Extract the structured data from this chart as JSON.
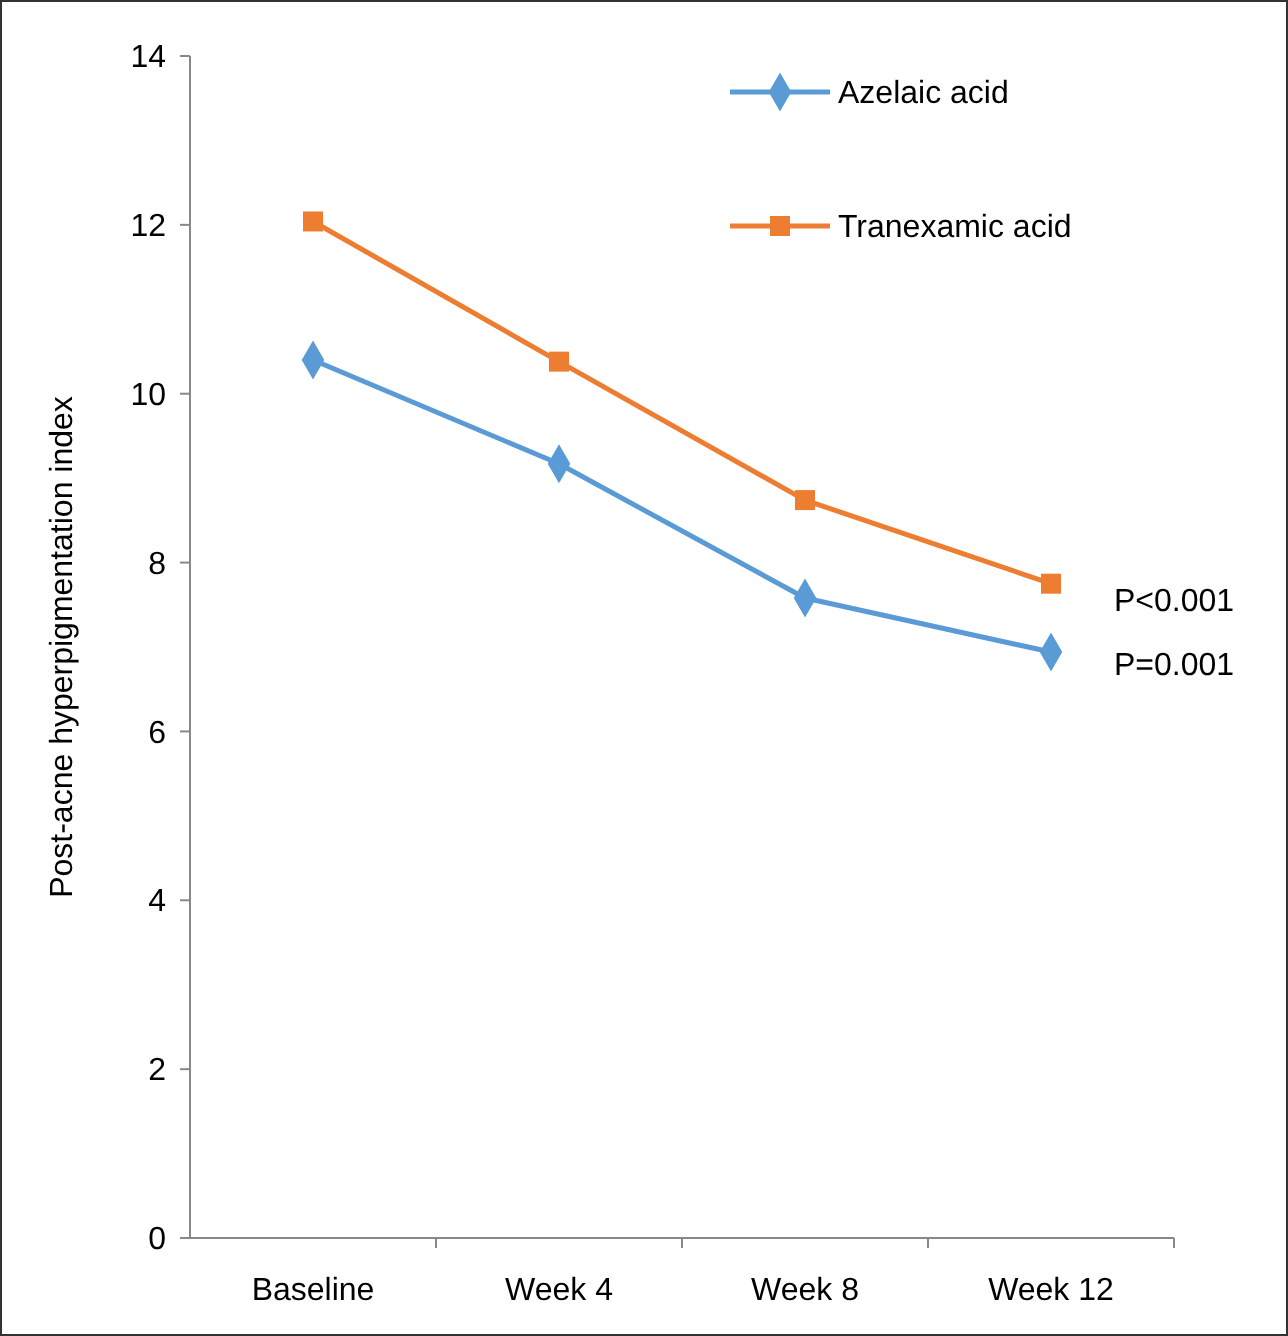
{
  "chart_data": {
    "type": "line",
    "ylabel": "Post-acne hyperpigmentation index",
    "categories": [
      "Baseline",
      "Week 4",
      "Week 8",
      "Week 12"
    ],
    "series": [
      {
        "name": "Azelaic acid",
        "color": "#5b9bd5",
        "marker": "diamond",
        "values": [
          10.4,
          9.17,
          7.58,
          6.94
        ]
      },
      {
        "name": "Tranexamic acid",
        "color": "#ed7d31",
        "marker": "square",
        "values": [
          12.04,
          10.38,
          8.74,
          7.75
        ]
      }
    ],
    "ylim": [
      0,
      14
    ],
    "yticks": [
      0,
      2,
      4,
      6,
      8,
      10,
      12,
      14
    ],
    "grid": false,
    "legend": "top right",
    "line_style": "solid",
    "annotations": [
      "P<0.001",
      "P=0.001"
    ]
  }
}
